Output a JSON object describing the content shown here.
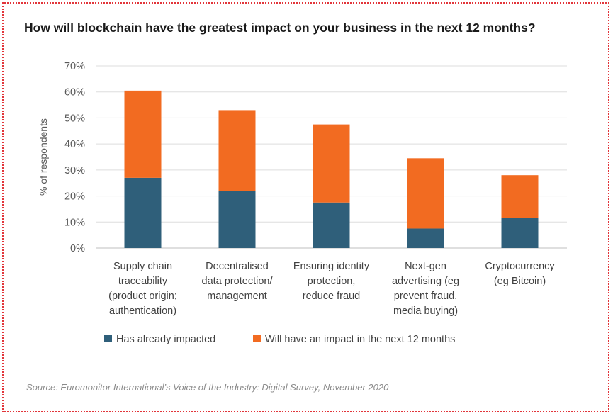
{
  "title": "How will blockchain have the greatest impact on your business in the next 12 months?",
  "source": "Source: Euromonitor International’s Voice of the Industry: Digital Survey, November 2020",
  "chart_data": {
    "type": "bar",
    "stacked": true,
    "title": "How will blockchain have the greatest impact on your business in the next 12 months?",
    "xlabel": "",
    "ylabel": "% of respondents",
    "ylim": [
      0,
      70
    ],
    "yticks": [
      0,
      10,
      20,
      30,
      40,
      50,
      60,
      70
    ],
    "ytick_labels": [
      "0%",
      "10%",
      "20%",
      "30%",
      "40%",
      "50%",
      "60%",
      "70%"
    ],
    "grid": true,
    "legend_position": "bottom",
    "categories": [
      [
        "Supply chain",
        "traceability",
        "(product origin;",
        "authentication)"
      ],
      [
        "Decentralised",
        "data protection/",
        "management"
      ],
      [
        "Ensuring identity",
        "protection,",
        "reduce fraud"
      ],
      [
        "Next-gen",
        "advertising (eg",
        "prevent fraud,",
        "media buying)"
      ],
      [
        "Cryptocurrency",
        "(eg Bitcoin)"
      ]
    ],
    "series": [
      {
        "name": "Has already impacted",
        "color": "#2f5f7a",
        "values": [
          27,
          22,
          17.5,
          7.5,
          11.5
        ]
      },
      {
        "name": "Will have an impact in the next 12 months",
        "color": "#f26b21",
        "values": [
          33.5,
          31,
          30,
          27,
          16.5
        ]
      }
    ]
  }
}
